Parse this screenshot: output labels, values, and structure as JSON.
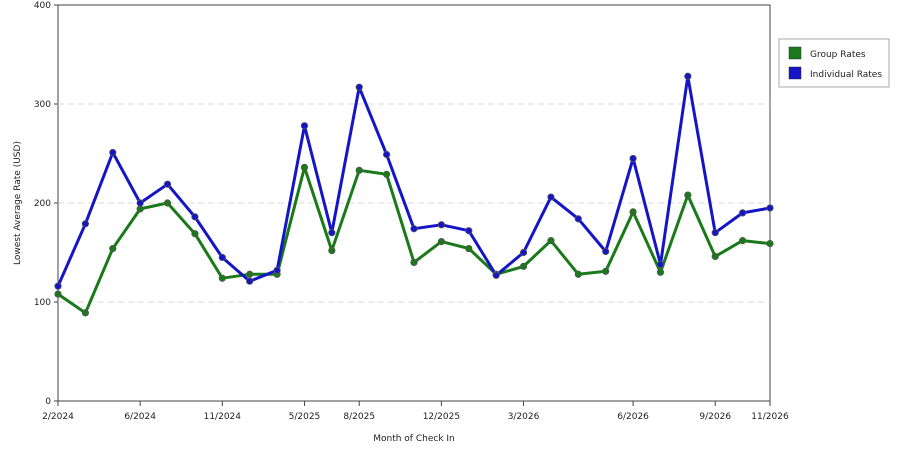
{
  "chart_data": {
    "type": "line",
    "xlabel": "Month of Check In",
    "ylabel": "Lowest Average Rate (USD)",
    "ylim": [
      0,
      400
    ],
    "y_ticks": [
      "0",
      "100",
      "200",
      "300",
      "400"
    ],
    "x_tick_labels": [
      "2/2024",
      "6/2024",
      "11/2024",
      "5/2025",
      "8/2025",
      "12/2025",
      "3/2026",
      "6/2026",
      "9/2026",
      "11/2026"
    ],
    "grid": "horizontal dashed",
    "legend_position": "top-right",
    "series": [
      {
        "name": "Group Rates",
        "color": "#1a7a1a",
        "values": [
          108,
          89,
          154,
          194,
          200,
          169,
          124,
          128,
          128,
          236,
          152,
          233,
          229,
          140,
          161,
          154,
          128,
          136,
          162,
          128,
          131,
          191,
          130,
          208,
          146,
          162,
          159
        ]
      },
      {
        "name": "Individual Rates",
        "color": "#1515c8",
        "values": [
          116,
          179,
          251,
          200,
          219,
          186,
          145,
          121,
          132,
          278,
          170,
          317,
          249,
          174,
          178,
          172,
          127,
          150,
          206,
          184,
          151,
          245,
          138,
          328,
          170,
          190,
          195
        ]
      }
    ]
  }
}
